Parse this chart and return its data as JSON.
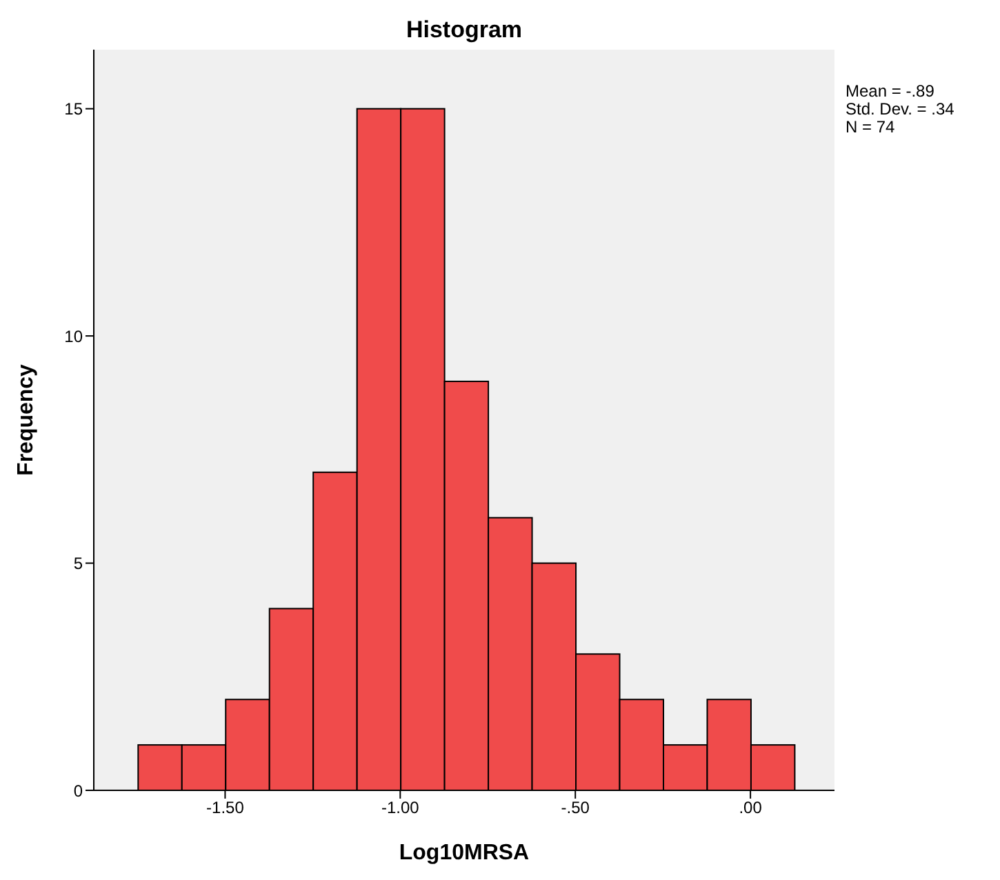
{
  "chart_data": {
    "type": "histogram",
    "title": "Histogram",
    "xlabel": "Log10MRSA",
    "ylabel": "Frequency",
    "bins": [
      -1.75,
      -1.625,
      -1.5,
      -1.375,
      -1.25,
      -1.125,
      -1.0,
      -0.875,
      -0.75,
      -0.625,
      -0.5,
      -0.375,
      -0.25,
      -0.125,
      0.0,
      0.125
    ],
    "values": [
      1,
      1,
      2,
      4,
      7,
      15,
      15,
      9,
      6,
      5,
      3,
      2,
      1,
      2,
      1
    ],
    "color": "#f04b4b",
    "xlim": [
      -1.875,
      0.24
    ],
    "ylim": [
      0,
      16.3
    ],
    "xticks": [
      {
        "value": -1.5,
        "label": "-1.50"
      },
      {
        "value": -1.0,
        "label": "-1.00"
      },
      {
        "value": -0.5,
        "label": "-.50"
      },
      {
        "value": 0,
        "label": ".00"
      }
    ],
    "yticks": [
      0,
      5,
      10,
      15
    ],
    "annotations": [
      "Mean = -.89",
      "Std. Dev. = .34",
      "N = 74"
    ]
  }
}
